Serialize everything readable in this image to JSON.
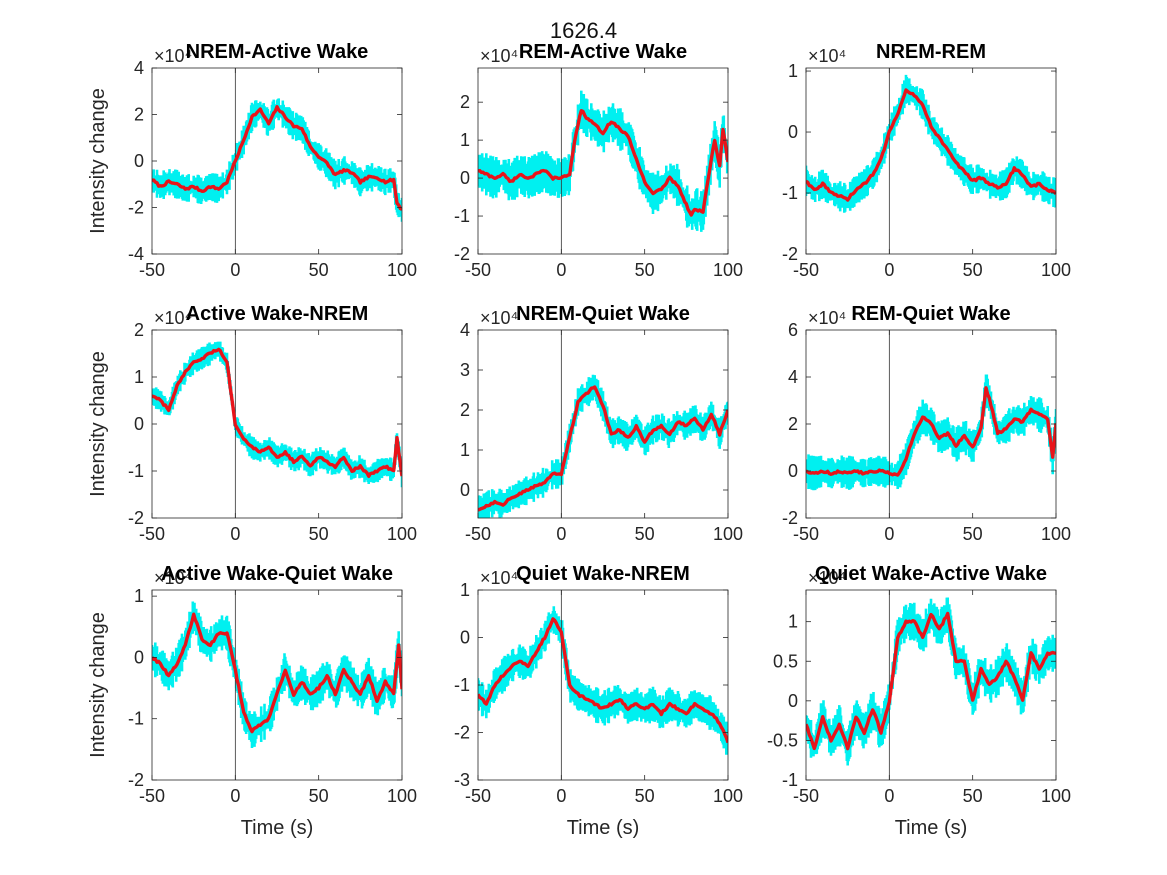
{
  "figure": {
    "suptitle": "1626.4",
    "exponent_label": "×10⁴"
  },
  "style": {
    "mean_color": "#e8141a",
    "band_color": "#00f0f0",
    "axis_color": "#262626",
    "background": "#ffffff"
  },
  "chart_data": [
    {
      "type": "line",
      "title": "NREM-Active Wake",
      "ylabel": "Intensity change",
      "xlabel": "",
      "exponent": "×10⁴",
      "xlim": [
        -50,
        100
      ],
      "ylim": [
        -4,
        4
      ],
      "xticks": [
        -50,
        0,
        50,
        100
      ],
      "yticks": [
        -4,
        -2,
        0,
        2,
        4
      ],
      "band_width": 0.5,
      "x": [
        -50,
        -45,
        -40,
        -35,
        -30,
        -25,
        -20,
        -15,
        -10,
        -5,
        0,
        5,
        10,
        15,
        20,
        25,
        30,
        35,
        40,
        45,
        50,
        55,
        60,
        65,
        70,
        75,
        80,
        85,
        90,
        95,
        97,
        100
      ],
      "mean": [
        -0.8,
        -1.1,
        -0.9,
        -1.0,
        -1.2,
        -1.1,
        -1.3,
        -1.1,
        -1.2,
        -0.9,
        0.0,
        0.9,
        1.9,
        2.2,
        1.6,
        2.3,
        1.9,
        1.5,
        1.4,
        0.6,
        0.2,
        -0.1,
        -0.6,
        -0.4,
        -0.5,
        -0.9,
        -0.7,
        -0.7,
        -0.9,
        -0.8,
        -1.8,
        -2.1
      ],
      "series": [
        {
          "name": "",
          "role": "mean line"
        }
      ]
    },
    {
      "type": "line",
      "title": "REM-Active Wake",
      "ylabel": "",
      "xlabel": "",
      "exponent": "×10⁴",
      "xlim": [
        -50,
        100
      ],
      "ylim": [
        -2,
        2.9
      ],
      "xticks": [
        -50,
        0,
        50,
        100
      ],
      "yticks": [
        -2,
        -1,
        0,
        1,
        2
      ],
      "band_width": 0.45,
      "x": [
        -50,
        -45,
        -40,
        -35,
        -30,
        -25,
        -20,
        -15,
        -10,
        -5,
        0,
        5,
        8,
        12,
        15,
        20,
        25,
        30,
        35,
        40,
        45,
        50,
        55,
        60,
        65,
        70,
        75,
        78,
        80,
        85,
        90,
        92,
        95,
        97,
        100
      ],
      "mean": [
        0.2,
        0.1,
        0.0,
        0.1,
        -0.1,
        0.1,
        0.0,
        0.1,
        0.2,
        0.0,
        0.0,
        0.1,
        1.0,
        1.8,
        1.6,
        1.4,
        1.2,
        1.5,
        1.3,
        1.1,
        0.5,
        -0.1,
        -0.4,
        -0.3,
        0.0,
        -0.2,
        -0.7,
        -1.0,
        -0.8,
        -0.9,
        0.5,
        1.0,
        0.3,
        1.3,
        0.4
      ],
      "series": [
        {
          "name": "",
          "role": "mean line"
        }
      ]
    },
    {
      "type": "line",
      "title": "NREM-REM",
      "ylabel": "",
      "xlabel": "",
      "exponent": "×10⁴",
      "xlim": [
        -50,
        100
      ],
      "ylim": [
        -2,
        1.05
      ],
      "xticks": [
        -50,
        0,
        50,
        100
      ],
      "yticks": [
        -2,
        -1,
        0,
        1
      ],
      "band_width": 0.2,
      "x": [
        -50,
        -45,
        -40,
        -35,
        -30,
        -25,
        -20,
        -15,
        -10,
        -5,
        0,
        5,
        10,
        15,
        20,
        25,
        30,
        35,
        40,
        45,
        50,
        55,
        60,
        65,
        70,
        75,
        80,
        85,
        90,
        95,
        100
      ],
      "mean": [
        -0.8,
        -0.95,
        -0.85,
        -1.0,
        -1.05,
        -1.1,
        -0.95,
        -0.85,
        -0.7,
        -0.45,
        0.0,
        0.3,
        0.7,
        0.6,
        0.45,
        0.1,
        -0.1,
        -0.3,
        -0.5,
        -0.65,
        -0.8,
        -0.75,
        -0.85,
        -0.9,
        -0.85,
        -0.6,
        -0.7,
        -0.9,
        -0.85,
        -0.95,
        -1.0
      ],
      "series": [
        {
          "name": "",
          "role": "mean line"
        }
      ]
    },
    {
      "type": "line",
      "title": "Active Wake-NREM",
      "ylabel": "Intensity change",
      "xlabel": "",
      "exponent": "×10⁴",
      "xlim": [
        -50,
        100
      ],
      "ylim": [
        -2,
        2
      ],
      "xticks": [
        -50,
        0,
        50,
        100
      ],
      "yticks": [
        -2,
        -1,
        0,
        1,
        2
      ],
      "band_width": 0.2,
      "x": [
        -50,
        -45,
        -40,
        -35,
        -30,
        -25,
        -20,
        -15,
        -10,
        -5,
        0,
        5,
        10,
        15,
        20,
        25,
        30,
        35,
        40,
        45,
        50,
        55,
        60,
        65,
        70,
        75,
        80,
        85,
        90,
        95,
        97,
        100
      ],
      "mean": [
        0.6,
        0.5,
        0.3,
        0.8,
        1.1,
        1.3,
        1.4,
        1.5,
        1.6,
        1.3,
        0.0,
        -0.3,
        -0.5,
        -0.6,
        -0.5,
        -0.7,
        -0.6,
        -0.8,
        -0.7,
        -0.9,
        -0.7,
        -0.8,
        -0.9,
        -0.7,
        -1.0,
        -0.9,
        -1.1,
        -1.0,
        -0.9,
        -1.0,
        -0.3,
        -1.1
      ],
      "series": [
        {
          "name": "",
          "role": "mean line"
        }
      ]
    },
    {
      "type": "line",
      "title": "NREM-Quiet Wake",
      "ylabel": "",
      "xlabel": "",
      "exponent": "×10⁴",
      "xlim": [
        -50,
        100
      ],
      "ylim": [
        -0.7,
        4
      ],
      "xticks": [
        -50,
        0,
        50,
        100
      ],
      "yticks": [
        0,
        1,
        2,
        3,
        4
      ],
      "band_width": 0.3,
      "x": [
        -50,
        -45,
        -40,
        -35,
        -30,
        -25,
        -20,
        -15,
        -10,
        -5,
        0,
        5,
        10,
        15,
        20,
        25,
        30,
        35,
        40,
        45,
        50,
        55,
        60,
        65,
        70,
        75,
        80,
        85,
        90,
        95,
        100
      ],
      "mean": [
        -0.5,
        -0.4,
        -0.3,
        -0.35,
        -0.2,
        -0.1,
        0.0,
        0.1,
        0.2,
        0.4,
        0.4,
        1.3,
        2.2,
        2.4,
        2.6,
        2.1,
        1.4,
        1.5,
        1.3,
        1.6,
        1.2,
        1.5,
        1.6,
        1.4,
        1.7,
        1.6,
        1.8,
        1.5,
        1.9,
        1.4,
        2.0
      ],
      "series": [
        {
          "name": "",
          "role": "mean line"
        }
      ]
    },
    {
      "type": "line",
      "title": "REM-Quiet Wake",
      "ylabel": "",
      "xlabel": "",
      "exponent": "×10⁴",
      "xlim": [
        -50,
        100
      ],
      "ylim": [
        -2,
        6
      ],
      "xticks": [
        -50,
        0,
        50,
        100
      ],
      "yticks": [
        -2,
        0,
        2,
        4,
        6
      ],
      "band_width": 0.6,
      "x": [
        -50,
        -45,
        -40,
        -35,
        -30,
        -25,
        -20,
        -15,
        -10,
        -5,
        0,
        5,
        10,
        15,
        20,
        25,
        30,
        35,
        40,
        45,
        50,
        55,
        58,
        60,
        65,
        70,
        75,
        80,
        85,
        90,
        95,
        98,
        100
      ],
      "mean": [
        0.0,
        -0.1,
        0.0,
        -0.1,
        0.0,
        -0.1,
        0.0,
        -0.1,
        0.0,
        0.0,
        -0.1,
        -0.2,
        0.5,
        1.6,
        2.3,
        2.0,
        1.4,
        1.6,
        1.1,
        1.5,
        1.0,
        1.8,
        3.5,
        3.1,
        1.6,
        1.8,
        2.2,
        2.1,
        2.6,
        2.4,
        2.2,
        0.6,
        2.0
      ],
      "series": [
        {
          "name": "",
          "role": "mean line"
        }
      ]
    },
    {
      "type": "line",
      "title": "Active Wake-Quiet Wake",
      "ylabel": "Intensity change",
      "xlabel": "Time (s)",
      "exponent": "×10⁴",
      "xlim": [
        -50,
        100
      ],
      "ylim": [
        -2,
        1.1
      ],
      "xticks": [
        -50,
        0,
        50,
        100
      ],
      "yticks": [
        -2,
        -1,
        0,
        1
      ],
      "band_width": 0.25,
      "x": [
        -50,
        -45,
        -40,
        -35,
        -30,
        -25,
        -20,
        -15,
        -10,
        -5,
        0,
        5,
        10,
        15,
        20,
        25,
        30,
        35,
        40,
        45,
        50,
        55,
        60,
        65,
        70,
        75,
        80,
        85,
        90,
        95,
        98,
        100
      ],
      "mean": [
        0.0,
        -0.1,
        -0.3,
        -0.1,
        0.2,
        0.7,
        0.3,
        0.2,
        0.4,
        0.4,
        -0.2,
        -0.9,
        -1.2,
        -1.1,
        -1.0,
        -0.6,
        -0.2,
        -0.6,
        -0.4,
        -0.6,
        -0.5,
        -0.3,
        -0.6,
        -0.2,
        -0.4,
        -0.6,
        -0.3,
        -0.7,
        -0.4,
        -0.6,
        0.2,
        -0.5
      ],
      "series": [
        {
          "name": "",
          "role": "mean line"
        }
      ]
    },
    {
      "type": "line",
      "title": "Quiet Wake-NREM",
      "ylabel": "",
      "xlabel": "Time (s)",
      "exponent": "×10⁴",
      "xlim": [
        -50,
        100
      ],
      "ylim": [
        -3,
        1
      ],
      "xticks": [
        -50,
        0,
        50,
        100
      ],
      "yticks": [
        -3,
        -2,
        -1,
        0,
        1
      ],
      "band_width": 0.3,
      "x": [
        -50,
        -45,
        -40,
        -35,
        -30,
        -25,
        -20,
        -15,
        -10,
        -5,
        0,
        5,
        10,
        15,
        20,
        25,
        30,
        35,
        40,
        45,
        50,
        55,
        60,
        65,
        70,
        75,
        80,
        85,
        90,
        95,
        100
      ],
      "mean": [
        -1.2,
        -1.4,
        -1.0,
        -0.8,
        -0.6,
        -0.5,
        -0.6,
        -0.3,
        0.0,
        0.4,
        0.1,
        -1.0,
        -1.2,
        -1.3,
        -1.4,
        -1.5,
        -1.4,
        -1.3,
        -1.5,
        -1.4,
        -1.5,
        -1.4,
        -1.6,
        -1.4,
        -1.5,
        -1.6,
        -1.4,
        -1.5,
        -1.6,
        -1.8,
        -2.2
      ],
      "series": [
        {
          "name": "",
          "role": "mean line"
        }
      ]
    },
    {
      "type": "line",
      "title": "Quiet Wake-Active Wake",
      "ylabel": "",
      "xlabel": "Time (s)",
      "exponent": "×10⁴",
      "xlim": [
        -50,
        100
      ],
      "ylim": [
        -1,
        1.4
      ],
      "xticks": [
        -50,
        0,
        50,
        100
      ],
      "yticks": [
        -1,
        -0.5,
        0,
        0.5,
        1
      ],
      "band_width": 0.2,
      "x": [
        -50,
        -45,
        -40,
        -35,
        -30,
        -25,
        -20,
        -15,
        -10,
        -5,
        0,
        5,
        10,
        15,
        20,
        25,
        30,
        35,
        40,
        45,
        50,
        55,
        60,
        65,
        70,
        75,
        80,
        85,
        90,
        95,
        100
      ],
      "mean": [
        -0.3,
        -0.6,
        -0.2,
        -0.5,
        -0.3,
        -0.6,
        -0.2,
        -0.4,
        -0.1,
        -0.4,
        0.0,
        0.8,
        1.0,
        1.0,
        0.8,
        1.1,
        0.9,
        1.1,
        0.5,
        0.5,
        0.0,
        0.4,
        0.2,
        0.3,
        0.5,
        0.3,
        0.0,
        0.6,
        0.4,
        0.6,
        0.6
      ],
      "series": [
        {
          "name": "",
          "role": "mean line"
        }
      ]
    }
  ]
}
